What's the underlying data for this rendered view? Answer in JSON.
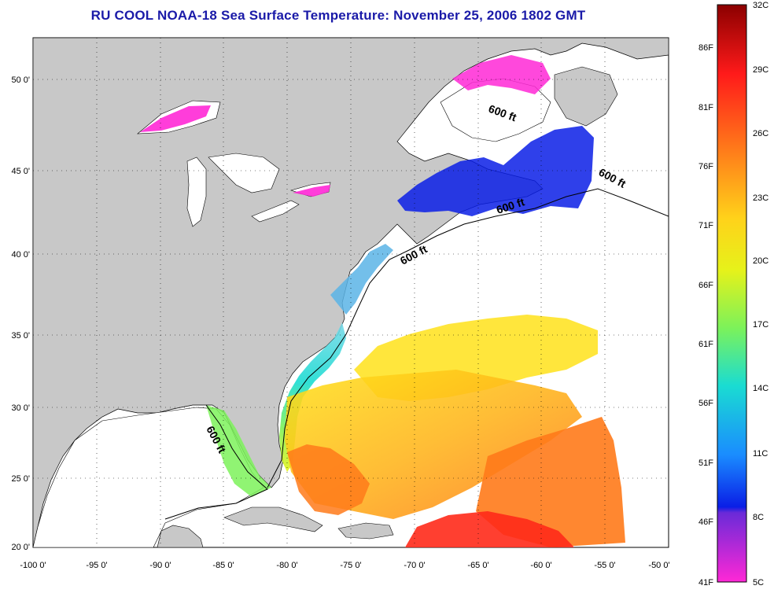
{
  "title": "RU COOL  NOAA-18  Sea Surface Temperature:  November 25, 2006 1802 GMT",
  "map": {
    "lon_ticks": [
      "-100 0'",
      "-95 0'",
      "-90 0'",
      "-85 0'",
      "-80 0'",
      "-75 0'",
      "-70 0'",
      "-65 0'",
      "-60 0'",
      "-55 0'",
      "-50 0'"
    ],
    "lat_ticks": [
      "50 0'",
      "45 0'",
      "40 0'",
      "35 0'",
      "30 0'",
      "25 0'",
      "20 0'"
    ],
    "lon_range": [
      -100,
      -50
    ],
    "lat_range": [
      20,
      52.5
    ],
    "depth_labels": [
      "600 ft",
      "600 ft",
      "600 ft",
      "600 ft",
      "600 ft"
    ],
    "land_color": "#c8c8c8",
    "cloud_color": "#ffffff"
  },
  "colorbar": {
    "f_labels": [
      "86F",
      "81F",
      "76F",
      "71F",
      "66F",
      "61F",
      "56F",
      "51F",
      "46F",
      "41F"
    ],
    "c_labels": [
      "32C",
      "29C",
      "26C",
      "23C",
      "20C",
      "17C",
      "14C",
      "11C",
      "8C",
      "5C"
    ],
    "colors": [
      "#8b0000",
      "#ff1a1a",
      "#ff7a1a",
      "#ffd21a",
      "#e6f21a",
      "#7cf25a",
      "#1adcd2",
      "#1a8cff",
      "#0a1ee6",
      "#6a2ad8",
      "#ff28d6"
    ]
  }
}
